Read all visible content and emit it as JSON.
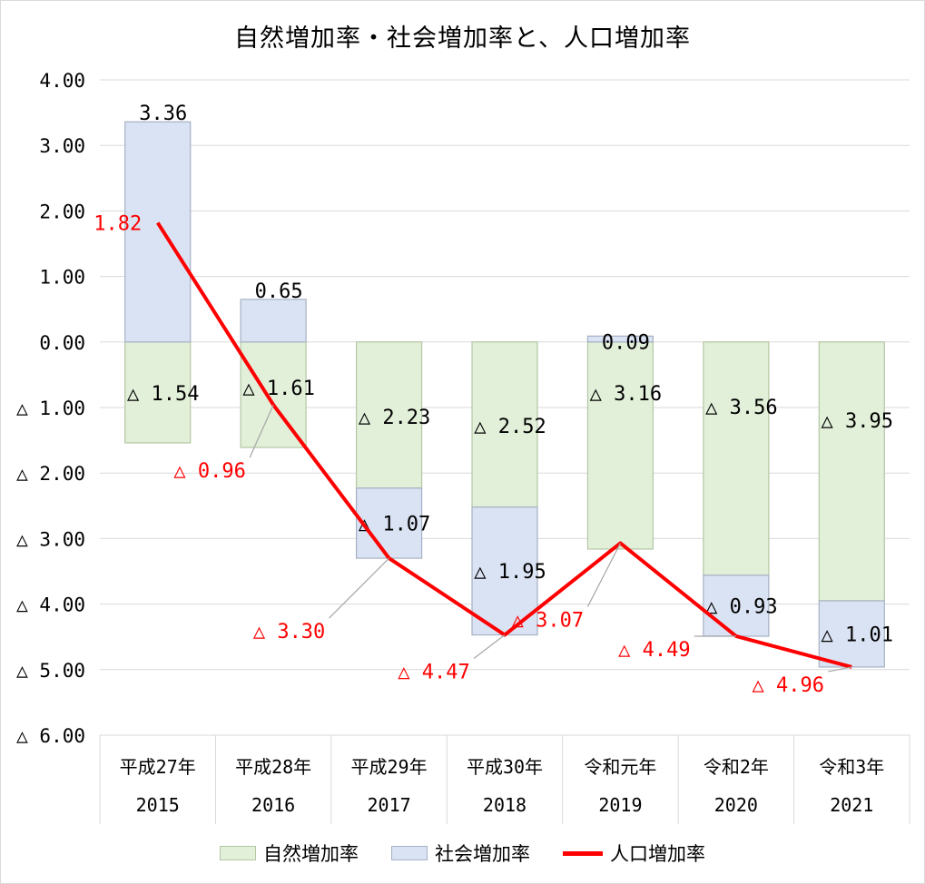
{
  "chart_data": {
    "type": "bar",
    "title": "自然増加率・社会増加率と、人口増加率",
    "categories": [
      [
        "平成27年",
        "2015"
      ],
      [
        "平成28年",
        "2016"
      ],
      [
        "平成29年",
        "2017"
      ],
      [
        "平成30年",
        "2018"
      ],
      [
        "令和元年",
        "2019"
      ],
      [
        "令和2年",
        "2020"
      ],
      [
        "令和3年",
        "2021"
      ]
    ],
    "ylim": [
      -6,
      4
    ],
    "yticks": [
      4,
      3,
      2,
      1,
      0,
      -1,
      -2,
      -3,
      -4,
      -5,
      -6
    ],
    "ytick_labels": [
      "4.00",
      "3.00",
      "2.00",
      "1.00",
      "0.00",
      "△ 1.00",
      "△ 2.00",
      "△ 3.00",
      "△ 4.00",
      "△ 5.00",
      "△ 6.00"
    ],
    "grid": true,
    "stacked": true,
    "legend_position": "bottom",
    "series": [
      {
        "name": "自然増加率",
        "type": "bar",
        "color": "#e2efd9",
        "border": "#b4c7a4",
        "values": [
          -1.54,
          -1.61,
          -2.23,
          -2.52,
          -3.16,
          -3.56,
          -3.95
        ],
        "labels": [
          "△ 1.54",
          "△ 1.61",
          "△ 2.23",
          "△ 2.52",
          "△ 3.16",
          "△ 3.56",
          "△ 3.95"
        ]
      },
      {
        "name": "社会増加率",
        "type": "bar",
        "color": "#dae3f3",
        "border": "#a5b1c4",
        "values": [
          3.36,
          0.65,
          -1.07,
          -1.95,
          0.09,
          -0.93,
          -1.01
        ],
        "labels": [
          "3.36",
          "0.65",
          "△ 1.07",
          "△ 1.95",
          "0.09",
          "△ 0.93",
          "△ 1.01"
        ]
      },
      {
        "name": "人口増加率",
        "type": "line",
        "color": "#ff0000",
        "values": [
          1.82,
          -0.96,
          -3.3,
          -4.47,
          -3.07,
          -4.49,
          -4.96
        ],
        "labels": [
          "1.82",
          "△ 0.96",
          "△ 3.30",
          "△ 4.47",
          "△ 3.07",
          "△ 4.49",
          "△ 4.96"
        ]
      }
    ]
  }
}
